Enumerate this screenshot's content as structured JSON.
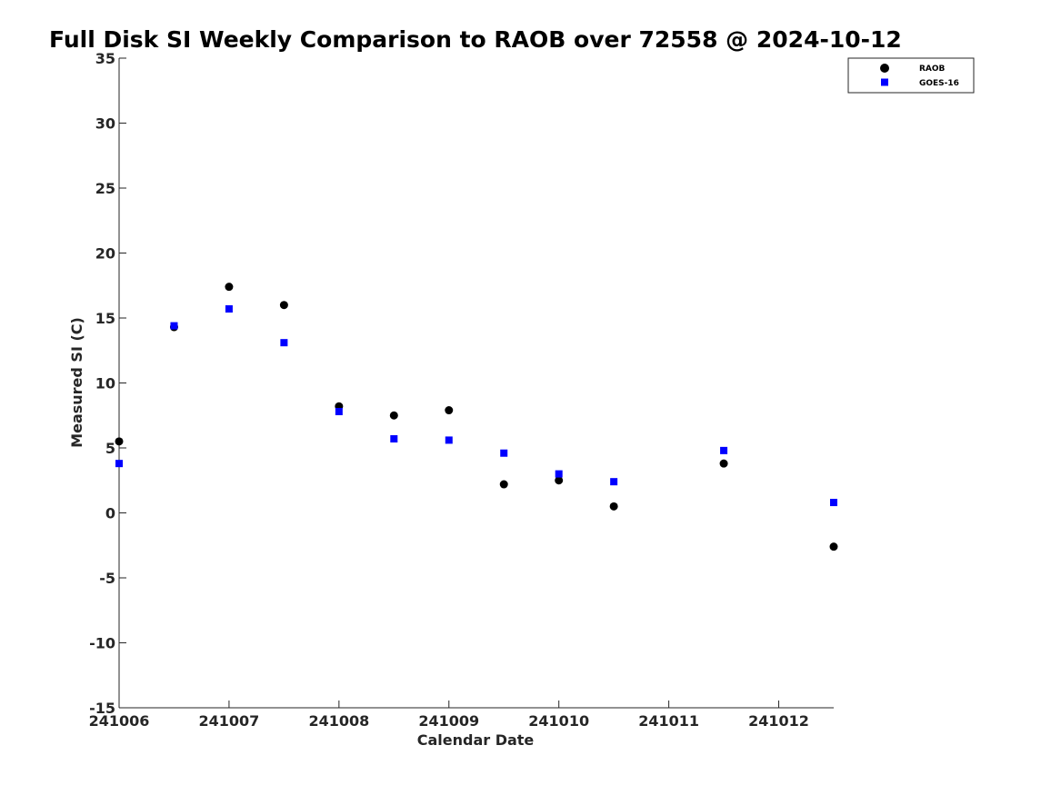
{
  "chart_data": {
    "type": "scatter",
    "title": "Full Disk SI Weekly Comparison to RAOB over 72558 @ 2024-10-12",
    "xlabel": "Calendar Date",
    "ylabel": "Measured SI (C)",
    "x_tick_labels": [
      "241006",
      "241007",
      "241008",
      "241009",
      "241010",
      "241011",
      "241012"
    ],
    "y_ticks": [
      35,
      30,
      25,
      20,
      15,
      10,
      5,
      0,
      -5,
      -10,
      -15
    ],
    "ylim": [
      -15,
      35
    ],
    "xlim": [
      0,
      6.5
    ],
    "grid": false,
    "legend_position": "top-right",
    "series": [
      {
        "name": "RAOB",
        "marker": "circle",
        "color": "#000000",
        "x": [
          0,
          0.5,
          1,
          1.5,
          2,
          2.5,
          3,
          3.5,
          4,
          4.5,
          5.5,
          6.5
        ],
        "y": [
          5.5,
          14.3,
          17.4,
          16.0,
          8.2,
          7.5,
          7.9,
          2.2,
          2.5,
          0.5,
          3.8,
          -2.6
        ]
      },
      {
        "name": "GOES-16",
        "marker": "square",
        "color": "#0000ff",
        "x": [
          0,
          0.5,
          1,
          1.5,
          2,
          2.5,
          3,
          3.5,
          4,
          4.5,
          5.5,
          6.5
        ],
        "y": [
          3.8,
          14.4,
          15.7,
          13.1,
          7.8,
          5.7,
          5.6,
          4.6,
          3.0,
          2.4,
          4.8,
          0.8
        ]
      }
    ]
  }
}
